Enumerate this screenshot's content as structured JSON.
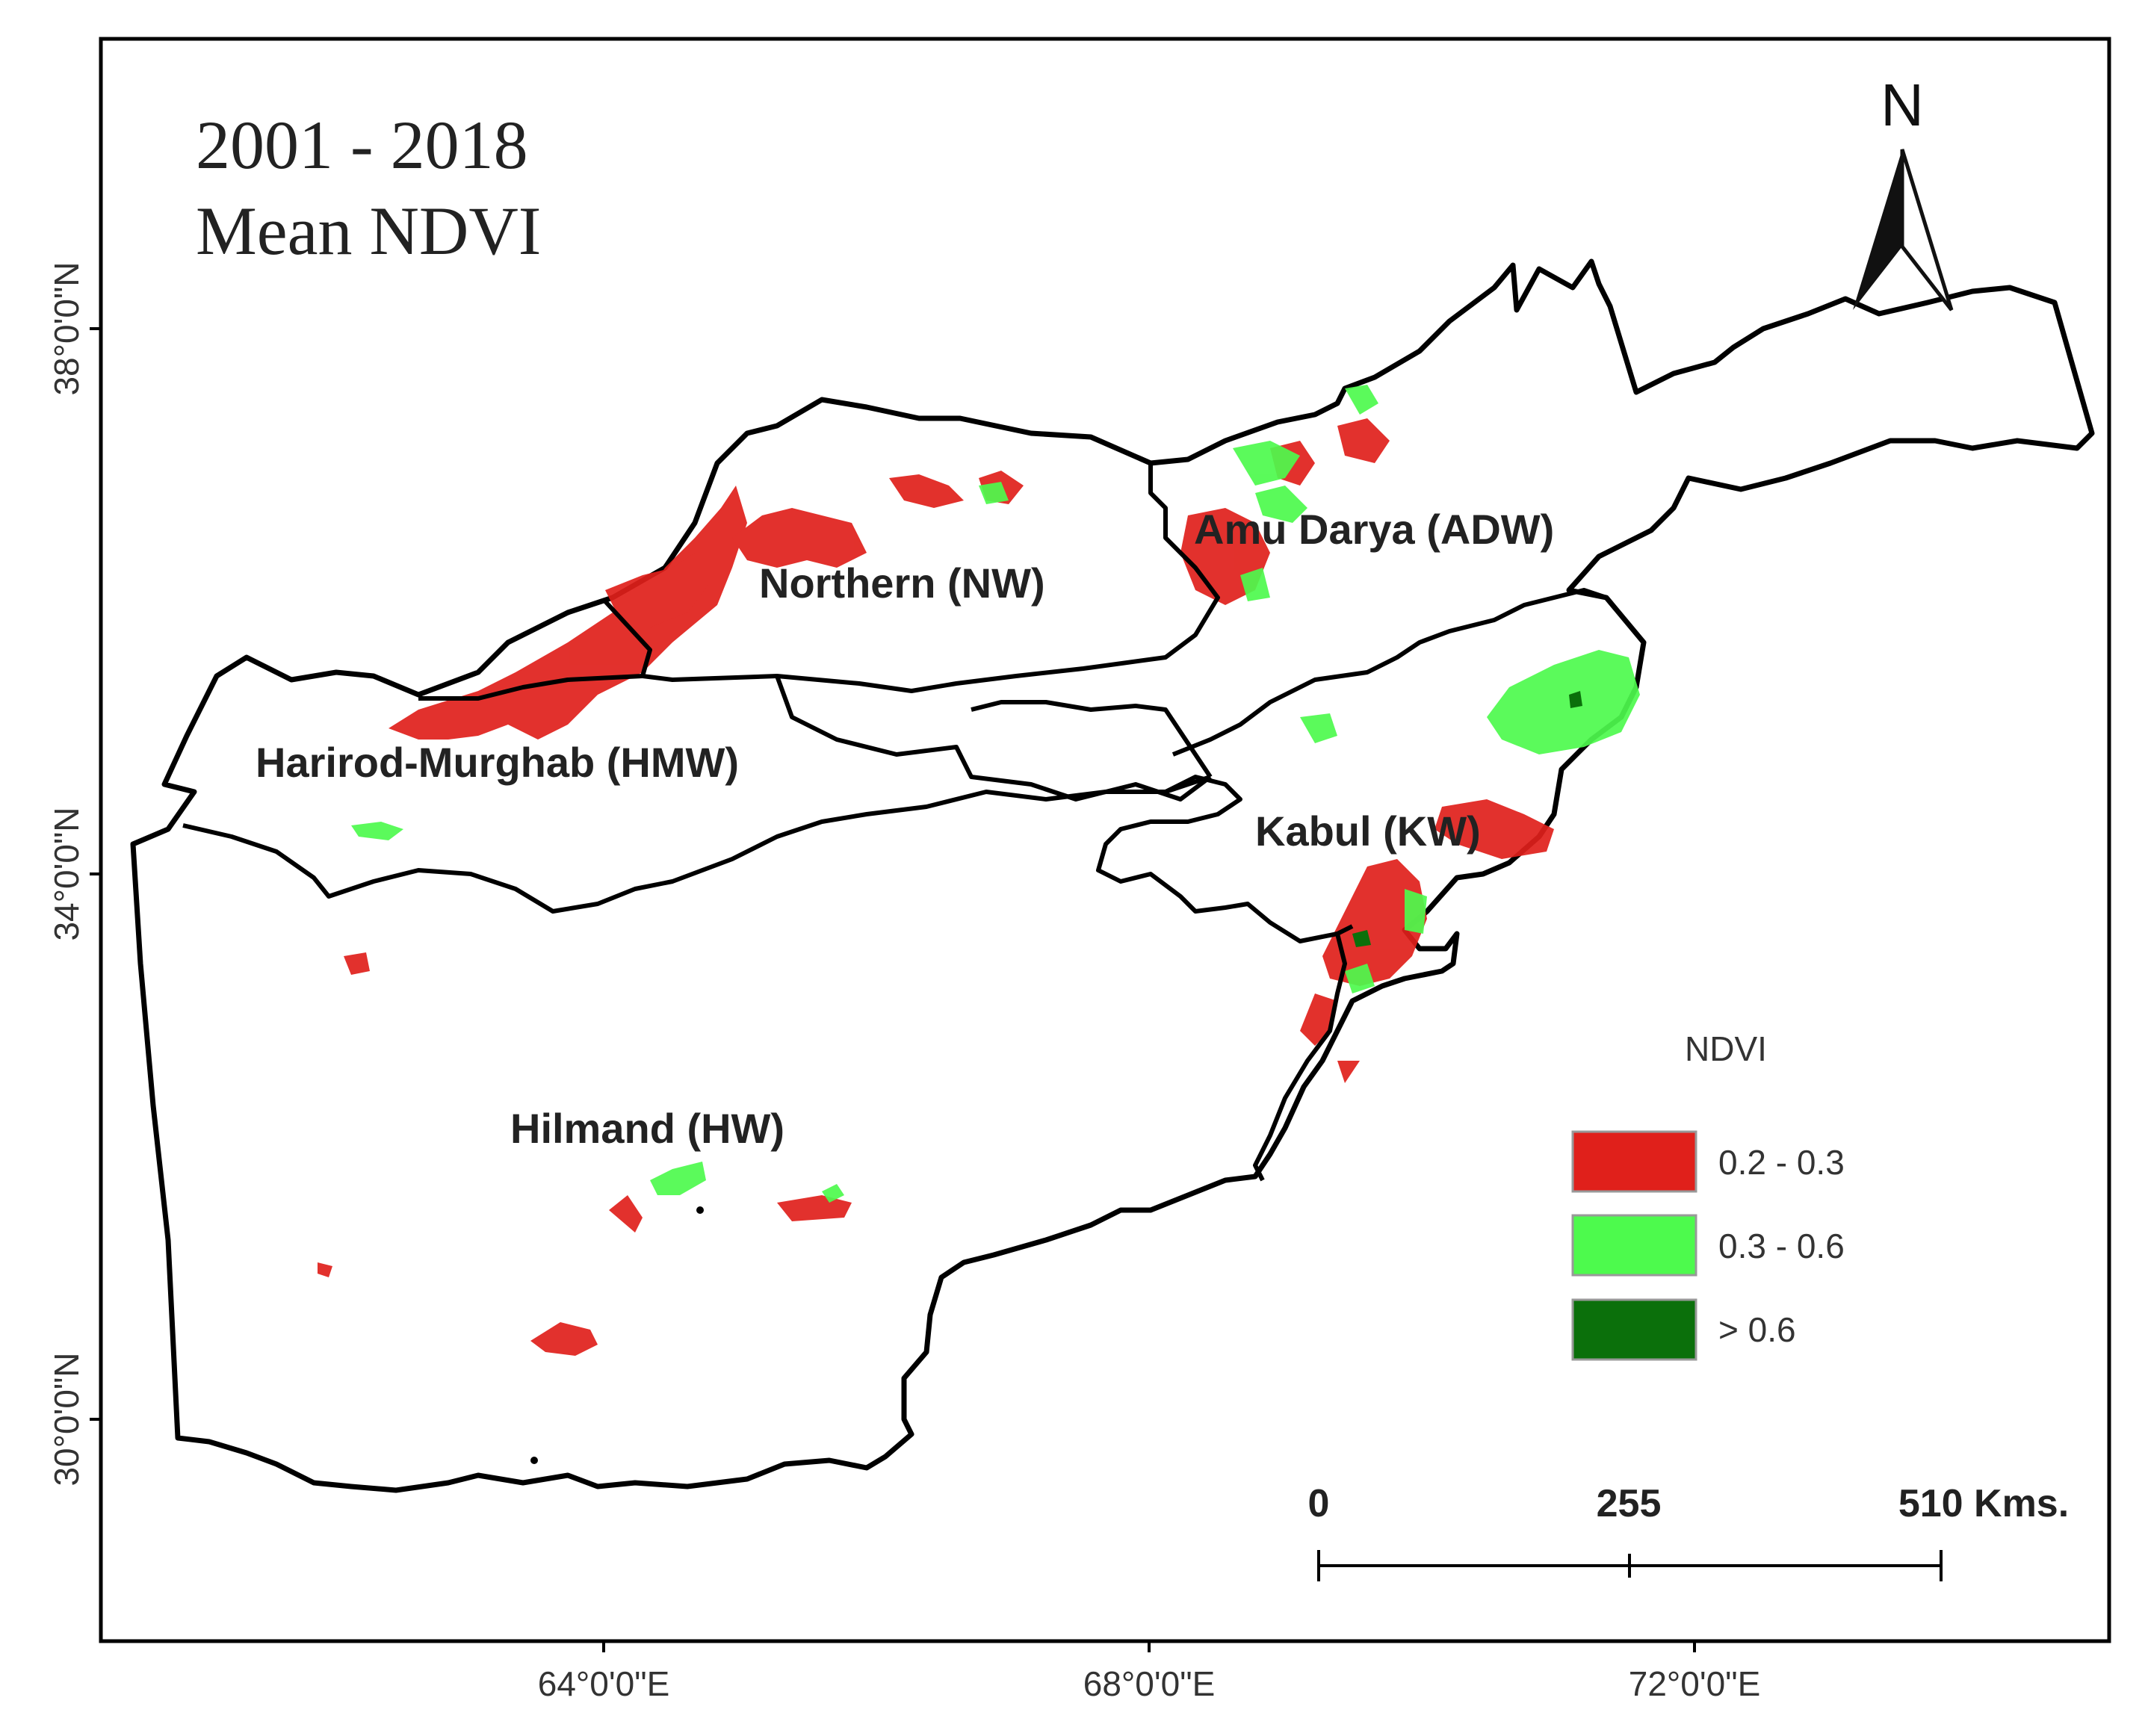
{
  "title": {
    "line1": "2001 - 2018",
    "line2": "Mean NDVI"
  },
  "north_arrow": {
    "label": "N"
  },
  "axes": {
    "lat_ticks": [
      "38°0'0\"N",
      "34°0'0\"N",
      "30°0'0\"N"
    ],
    "lon_ticks": [
      "64°0'0\"E",
      "68°0'0\"E",
      "72°0'0\"E"
    ]
  },
  "basins": [
    {
      "id": "nw",
      "label": "Northern (NW)"
    },
    {
      "id": "adw",
      "label": "Amu Darya (ADW)"
    },
    {
      "id": "hmw",
      "label": "Harirod-Murghab (HMW)"
    },
    {
      "id": "kw",
      "label": "Kabul (KW)"
    },
    {
      "id": "hw",
      "label": "Hilmand (HW)"
    }
  ],
  "legend": {
    "title": "NDVI",
    "items": [
      {
        "label": "0.2 - 0.3",
        "color": "#e0201b"
      },
      {
        "label": "0.3 - 0.6",
        "color": "#4dfa4d"
      },
      {
        "label": "> 0.6",
        "color": "#0b700b"
      }
    ]
  },
  "scale_bar": {
    "labels": [
      "0",
      "255",
      "510 Kms."
    ]
  },
  "colors": {
    "low": "#e0201b",
    "mid": "#4dfa4d",
    "high": "#0b700b"
  }
}
